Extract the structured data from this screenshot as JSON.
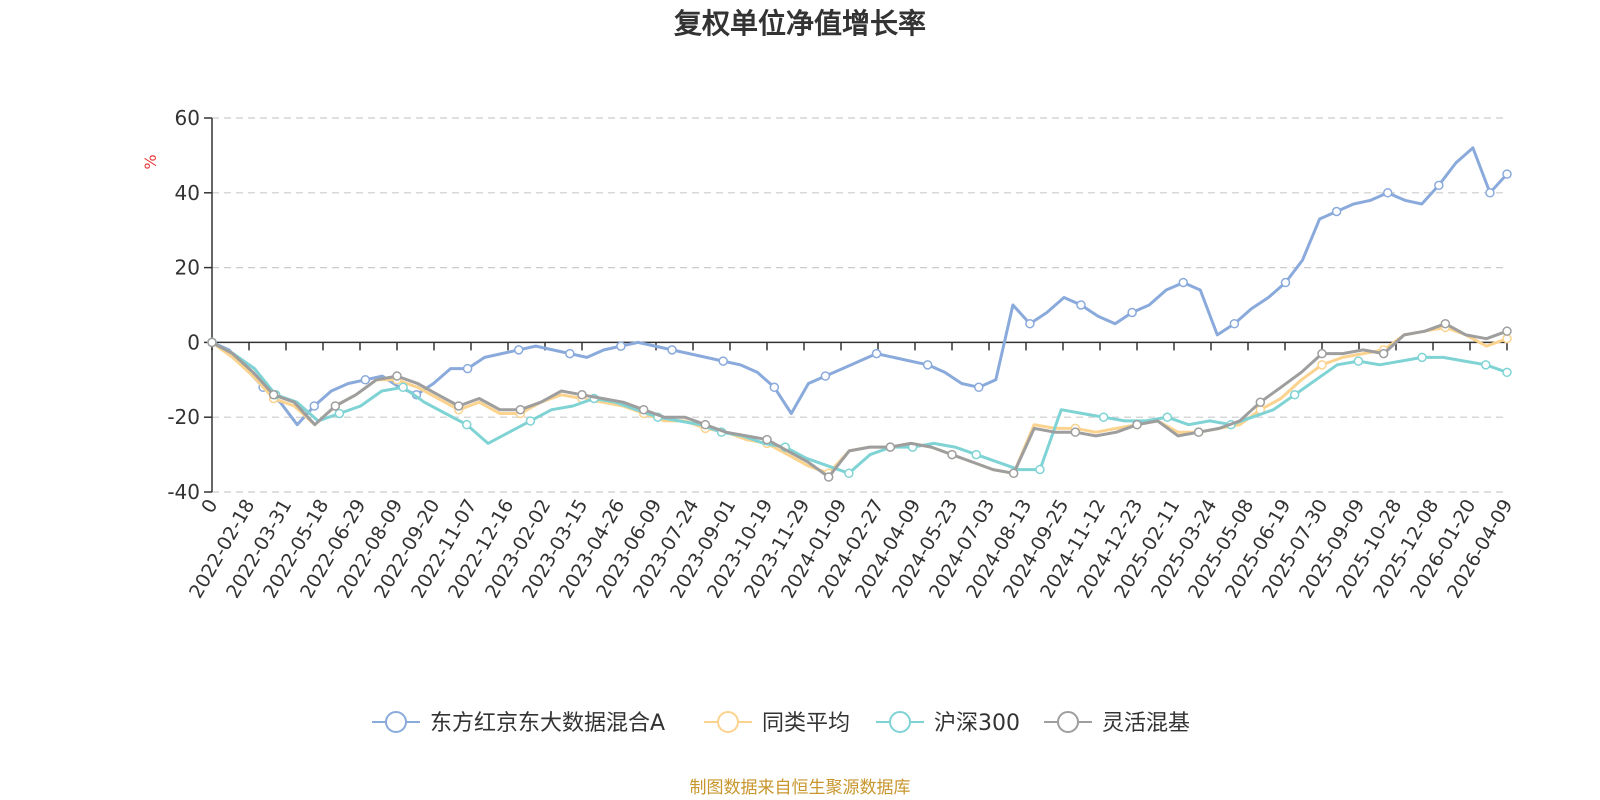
{
  "chart_data": {
    "type": "line",
    "title": "复权单位净值增长率",
    "ylabel": "%",
    "ylim": [
      -40,
      60
    ],
    "yticks": [
      60,
      40,
      20,
      0,
      -20,
      -40
    ],
    "xlabels": [
      "0",
      "2022-02-18",
      "2022-03-31",
      "2022-05-18",
      "2022-06-29",
      "2022-08-09",
      "2022-09-20",
      "2022-11-07",
      "2022-12-16",
      "2023-02-02",
      "2023-03-15",
      "2023-04-26",
      "2023-06-09",
      "2023-07-24",
      "2023-09-01",
      "2023-10-19",
      "2023-11-29",
      "2024-01-09",
      "2024-02-27",
      "2024-04-09",
      "2024-05-23",
      "2024-07-03",
      "2024-08-13",
      "2024-09-25",
      "2024-11-12",
      "2024-12-23",
      "2025-02-11",
      "2025-03-24",
      "2025-05-08",
      "2025-06-19",
      "2025-07-30",
      "2025-09-09",
      "2025-10-28",
      "2025-12-08",
      "2026-01-20",
      "2026-04-09"
    ],
    "grid": true,
    "legend_position": "bottom",
    "series": [
      {
        "name": "东方红京东大数据混合A",
        "color": "#8aaadc",
        "values": [
          0,
          -2,
          -7,
          -12,
          -16,
          -22,
          -17,
          -13,
          -11,
          -10,
          -9,
          -12,
          -14,
          -11,
          -7,
          -7,
          -4,
          -3,
          -2,
          -1,
          -2,
          -3,
          -4,
          -2,
          -1,
          0,
          -1,
          -2,
          -3,
          -4,
          -5,
          -6,
          -8,
          -12,
          -19,
          -11,
          -9,
          -7,
          -5,
          -3,
          -4,
          -5,
          -6,
          -8,
          -11,
          -12,
          -10,
          10,
          5,
          8,
          12,
          10,
          7,
          5,
          8,
          10,
          14,
          16,
          14,
          2,
          5,
          9,
          12,
          16,
          22,
          33,
          35,
          37,
          38,
          40,
          38,
          37,
          42,
          48,
          52,
          40,
          45
        ]
      },
      {
        "name": "同类平均",
        "color": "#fbd38f",
        "values": [
          0,
          -4,
          -9,
          -15,
          -17,
          -22,
          -17,
          -14,
          -10,
          -10,
          -12,
          -15,
          -18,
          -16,
          -19,
          -19,
          -16,
          -14,
          -15,
          -16,
          -17,
          -19,
          -21,
          -21,
          -23,
          -24,
          -26,
          -27,
          -30,
          -33,
          -35,
          -29,
          -28,
          -28,
          -27,
          -28,
          -30,
          -32,
          -34,
          -35,
          -22,
          -23,
          -23,
          -24,
          -23,
          -22,
          -21,
          -24,
          -24,
          -23,
          -22,
          -18,
          -15,
          -10,
          -6,
          -4,
          -3,
          -2,
          2,
          3,
          4,
          2,
          -1,
          1
        ]
      },
      {
        "name": "沪深300",
        "color": "#7fd3d4",
        "values": [
          0,
          -3,
          -7,
          -14,
          -16,
          -21,
          -19,
          -17,
          -13,
          -12,
          -16,
          -19,
          -22,
          -27,
          -24,
          -21,
          -18,
          -17,
          -15,
          -16,
          -18,
          -20,
          -21,
          -22,
          -24,
          -25,
          -27,
          -28,
          -31,
          -33,
          -35,
          -30,
          -28,
          -28,
          -27,
          -28,
          -30,
          -32,
          -34,
          -34,
          -18,
          -19,
          -20,
          -21,
          -21,
          -20,
          -22,
          -21,
          -22,
          -20,
          -18,
          -14,
          -10,
          -6,
          -5,
          -6,
          -5,
          -4,
          -4,
          -5,
          -6,
          -8
        ]
      },
      {
        "name": "灵活混基",
        "color": "#9e9e9e",
        "values": [
          0,
          -3,
          -8,
          -14,
          -16,
          -22,
          -17,
          -14,
          -10,
          -9,
          -11,
          -14,
          -17,
          -15,
          -18,
          -18,
          -16,
          -13,
          -14,
          -15,
          -16,
          -18,
          -20,
          -20,
          -22,
          -24,
          -25,
          -26,
          -29,
          -32,
          -36,
          -29,
          -28,
          -28,
          -27,
          -28,
          -30,
          -32,
          -34,
          -35,
          -23,
          -24,
          -24,
          -25,
          -24,
          -22,
          -21,
          -25,
          -24,
          -23,
          -21,
          -16,
          -12,
          -8,
          -3,
          -3,
          -2,
          -3,
          2,
          3,
          5,
          2,
          1,
          3
        ]
      }
    ]
  },
  "footer": {
    "source": "制图数据来自恒生聚源数据库"
  },
  "colors": {
    "text": "#333333",
    "grid": "#cccccc",
    "unit": "#e83b3b",
    "source": "#c8962d"
  }
}
